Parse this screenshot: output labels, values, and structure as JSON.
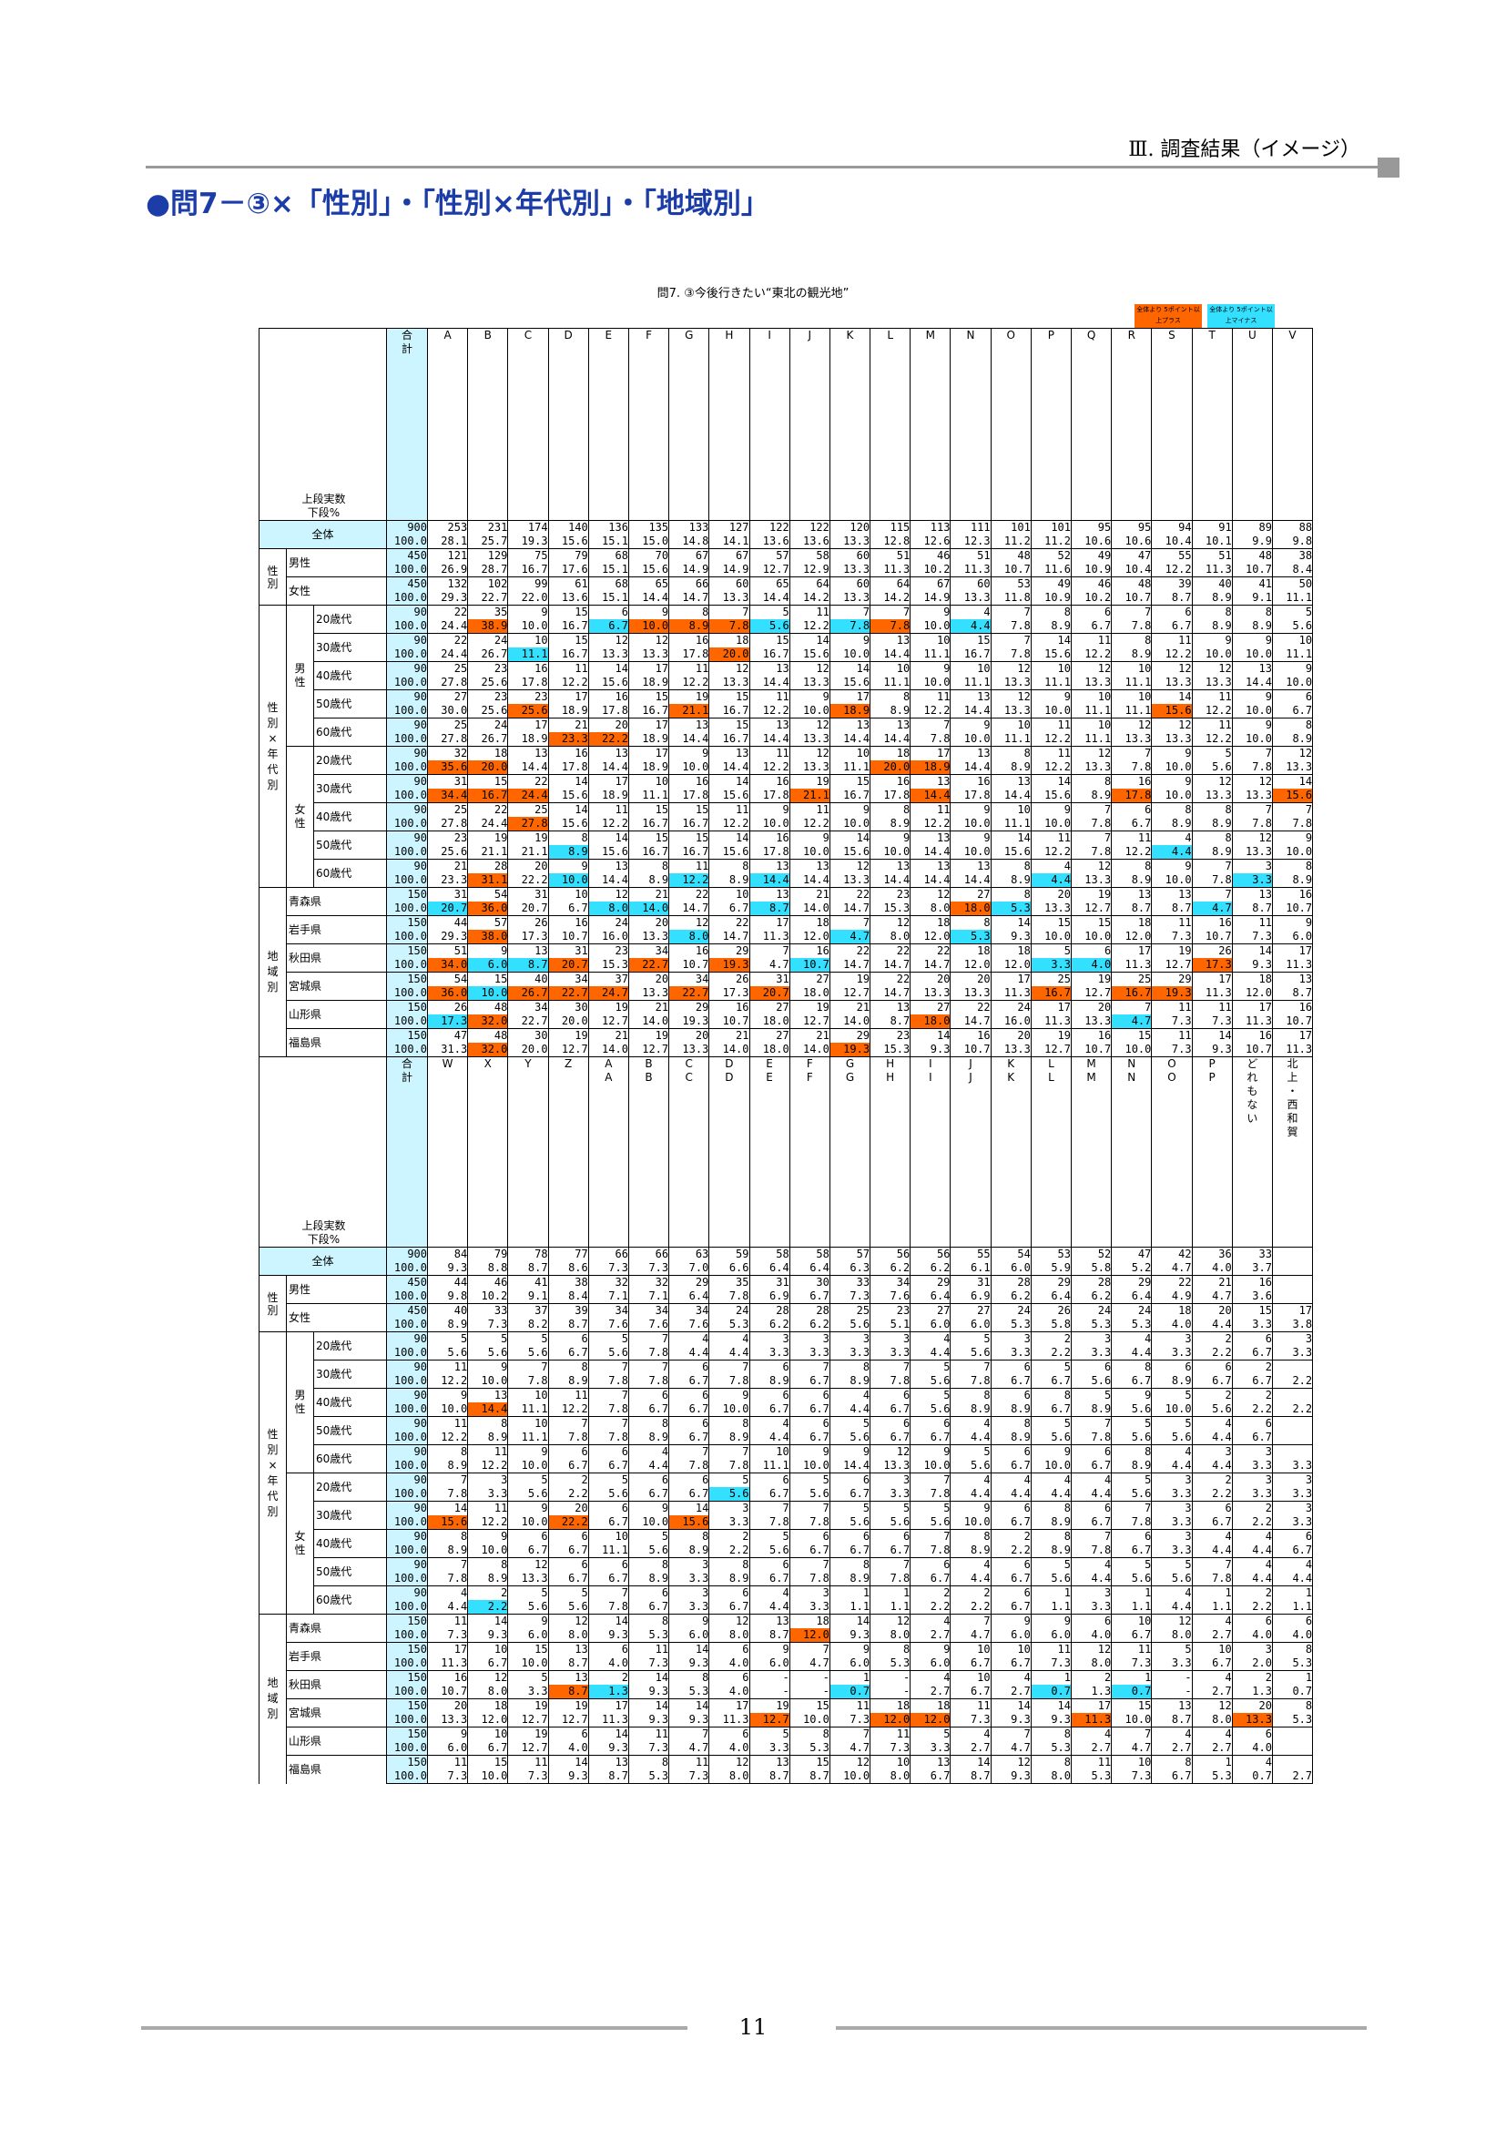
{
  "header": "Ⅲ. 調査結果（イメージ）",
  "title": "●問7－③×「性別」・「性別×年代別」・「地域別」",
  "table_title": "問7. ③今後行きたい“東北の観光地”",
  "legend": [
    "全体より\n5ポイント以上プラス",
    "全体より\n5ポイント以上マイナス"
  ],
  "stub_label": "上段実数\n下段%",
  "total_label": "全体",
  "total_head": "合\n計",
  "seibetsu": "性\n別",
  "seinen": "性\n別\n×\n年\n代\n別",
  "chiiki": "地\n域\n別",
  "male_group": "男\n性",
  "female_group": "女\n性",
  "page_number": "11",
  "rows": [
    {
      "g": "全体",
      "s": "全体"
    },
    {
      "g": "性別",
      "s": "男性"
    },
    {
      "g": "性別",
      "s": "女性"
    },
    {
      "g": "男性",
      "s": "20歳代"
    },
    {
      "g": "男性",
      "s": "30歳代"
    },
    {
      "g": "男性",
      "s": "40歳代"
    },
    {
      "g": "男性",
      "s": "50歳代"
    },
    {
      "g": "男性",
      "s": "60歳代"
    },
    {
      "g": "女性",
      "s": "20歳代"
    },
    {
      "g": "女性",
      "s": "30歳代"
    },
    {
      "g": "女性",
      "s": "40歳代"
    },
    {
      "g": "女性",
      "s": "50歳代"
    },
    {
      "g": "女性",
      "s": "60歳代"
    },
    {
      "g": "地域別",
      "s": "青森県"
    },
    {
      "g": "地域別",
      "s": "岩手県"
    },
    {
      "g": "地域別",
      "s": "秋田県"
    },
    {
      "g": "地域別",
      "s": "宮城県"
    },
    {
      "g": "地域別",
      "s": "山形県"
    },
    {
      "g": "地域別",
      "s": "福島県"
    }
  ],
  "blocks": [
    {
      "cols": [
        "A",
        "B",
        "C",
        "D",
        "E",
        "F",
        "G",
        "H",
        "I",
        "J",
        "K",
        "L",
        "M",
        "N",
        "O",
        "P",
        "Q",
        "R",
        "S",
        "T",
        "U",
        "V"
      ],
      "data": [
        [
          "900 253 231 174 140 136 135 133 127 122 122 120 115 113 111 101 101 95 95 94 91 89 88",
          "100.0 28.1 25.7 19.3 15.6 15.1 15.0 14.8 14.1 13.6 13.6 13.3 12.8 12.6 12.3 11.2 11.2 10.6 10.6 10.4 10.1 9.9 9.8"
        ],
        [
          "450 121 129 75 79 68 70 67 67 57 58 60 51 46 51 48 52 49 47 55 51 48 38",
          "100.0 26.9 28.7 16.7 17.6 15.1 15.6 14.9 14.9 12.7 12.9 13.3 11.3 10.2 11.3 10.7 11.6 10.9 10.4 12.2 11.3 10.7 8.4"
        ],
        [
          "450 132 102 99 61 68 65 66 60 65 64 60 64 67 60 53 49 46 48 39 40 41 50",
          "100.0 29.3 22.7 22.0 13.6 15.1 14.4 14.7 13.3 14.4 14.2 13.3 14.2 14.9 13.3 11.8 10.9 10.2 10.7 8.7 8.9 9.1 11.1"
        ],
        [
          "90 22 35 9 15 6 9 8 7 5 11 7 7 9 4 7 8 6 7 6 8 8 5",
          "100.0 24.4 38.9 10.0 16.7 6.7 10.0 8.9 7.8 5.6 12.2 7.8 7.8 10.0 4.4 7.8 8.9 6.7 7.8 6.7 8.9 8.9 5.6"
        ],
        [
          "90 22 24 10 15 12 12 16 18 15 14 9 13 10 15 7 14 11 8 11 9 9 10",
          "100.0 24.4 26.7 11.1 16.7 13.3 13.3 17.8 20.0 16.7 15.6 10.0 14.4 11.1 16.7 7.8 15.6 12.2 8.9 12.2 10.0 10.0 11.1"
        ],
        [
          "90 25 23 16 11 14 17 11 12 13 12 14 10 9 10 12 10 12 10 12 12 13 9",
          "100.0 27.8 25.6 17.8 12.2 15.6 18.9 12.2 13.3 14.4 13.3 15.6 11.1 10.0 11.1 13.3 11.1 13.3 11.1 13.3 13.3 14.4 10.0"
        ],
        [
          "90 27 23 23 17 16 15 19 15 11 9 17 8 11 13 12 9 10 10 14 11 9 6",
          "100.0 30.0 25.6 25.6 18.9 17.8 16.7 21.1 16.7 12.2 10.0 18.9 8.9 12.2 14.4 13.3 10.0 11.1 11.1 15.6 12.2 10.0 6.7"
        ],
        [
          "90 25 24 17 21 20 17 13 15 13 12 13 13 7 9 10 11 10 12 12 11 9 8",
          "100.0 27.8 26.7 18.9 23.3 22.2 18.9 14.4 16.7 14.4 13.3 14.4 14.4 7.8 10.0 11.1 12.2 11.1 13.3 13.3 12.2 10.0 8.9"
        ],
        [
          "90 32 18 13 16 13 17 9 13 11 12 10 18 17 13 8 11 12 7 9 5 7 12",
          "100.0 35.6 20.0 14.4 17.8 14.4 18.9 10.0 14.4 12.2 13.3 11.1 20.0 18.9 14.4 8.9 12.2 13.3 7.8 10.0 5.6 7.8 13.3"
        ],
        [
          "90 31 15 22 14 17 10 16 14 16 19 15 16 13 16 13 14 8 16 9 12 12 14",
          "100.0 34.4 16.7 24.4 15.6 18.9 11.1 17.8 15.6 17.8 21.1 16.7 17.8 14.4 17.8 14.4 15.6 8.9 17.8 10.0 13.3 13.3 15.6"
        ],
        [
          "90 25 22 25 14 11 15 15 11 9 11 9 8 11 9 10 9 7 6 8 8 7 7",
          "100.0 27.8 24.4 27.8 15.6 12.2 16.7 16.7 12.2 10.0 12.2 10.0 8.9 12.2 10.0 11.1 10.0 7.8 6.7 8.9 8.9 7.8 7.8"
        ],
        [
          "90 23 19 19 8 14 15 15 14 16 9 14 9 13 9 14 11 7 11 4 8 12 9",
          "100.0 25.6 21.1 21.1 8.9 15.6 16.7 16.7 15.6 17.8 10.0 15.6 10.0 14.4 10.0 15.6 12.2 7.8 12.2 4.4 8.9 13.3 10.0"
        ],
        [
          "90 21 28 20 9 13 8 11 8 13 13 12 13 13 13 8 4 12 8 9 7 3 8",
          "100.0 23.3 31.1 22.2 10.0 14.4 8.9 12.2 8.9 14.4 14.4 13.3 14.4 14.4 14.4 8.9 4.4 13.3 8.9 10.0 7.8 3.3 8.9"
        ],
        [
          "150 31 54 31 10 12 21 22 10 13 21 22 23 12 27 8 20 19 13 13 7 13 16",
          "100.0 20.7 36.0 20.7 6.7 8.0 14.0 14.7 6.7 8.7 14.0 14.7 15.3 8.0 18.0 5.3 13.3 12.7 8.7 8.7 4.7 8.7 10.7"
        ],
        [
          "150 44 57 26 16 24 20 12 22 17 18 7 12 18 8 14 15 15 18 11 16 11 9",
          "100.0 29.3 38.0 17.3 10.7 16.0 13.3 8.0 14.7 11.3 12.0 4.7 8.0 12.0 5.3 9.3 10.0 10.0 12.0 7.3 10.7 7.3 6.0"
        ],
        [
          "150 51 9 13 31 23 34 16 29 7 16 22 22 22 18 18 5 6 17 19 26 14 17",
          "100.0 34.0 6.0 8.7 20.7 15.3 22.7 10.7 19.3 4.7 10.7 14.7 14.7 14.7 12.0 12.0 3.3 4.0 11.3 12.7 17.3 9.3 11.3"
        ],
        [
          "150 54 15 40 34 37 20 34 26 31 27 19 22 20 20 17 25 19 25 29 17 18 13",
          "100.0 36.0 10.0 26.7 22.7 24.7 13.3 22.7 17.3 20.7 18.0 12.7 14.7 13.3 13.3 11.3 16.7 12.7 16.7 19.3 11.3 12.0 8.7"
        ],
        [
          "150 26 48 34 30 19 21 29 16 27 19 21 13 27 22 24 17 20 7 11 11 17 16",
          "100.0 17.3 32.0 22.7 20.0 12.7 14.0 19.3 10.7 18.0 12.7 14.0 8.7 18.0 14.7 16.0 11.3 13.3 4.7 7.3 7.3 11.3 10.7"
        ],
        [
          "150 47 48 30 19 21 19 20 21 27 21 29 23 14 16 20 19 16 15 11 14 16 17",
          "100.0 31.3 32.0 20.0 12.7 14.0 12.7 13.3 14.0 18.0 14.0 19.3 15.3 9.3 10.7 13.3 12.7 10.7 10.0 7.3 9.3 10.7 11.3"
        ]
      ],
      "hl": [
        "",
        "",
        "",
        "B:o E:y F:o G:o H:o I:y K:y L:o N:y",
        "H:o C:y",
        "",
        "C:o G:o K:o S:o",
        "D:o E:o",
        "A:o B:o L:o M:o",
        "A:o B:o C:o J:o M:o R:o V:o",
        "C:o",
        "D:y S:y",
        "B:o D:y G:y I:y P:y U:y",
        "A:y B:o E:y F:y I:y N:o O:y T:y",
        "B:o G:y K:y N:y",
        "A:o B:y C:y D:o F:o H:o J:y P:y Q:y T:o",
        "A:o B:y C:o D:o E:o G:o I:o P:o R:o S:o",
        "A:y B:o M:o R:y",
        "B:o K:o"
      ]
    },
    {
      "cols": [
        "W",
        "X",
        "Y",
        "Z",
        "AA",
        "BB",
        "CC",
        "DD",
        "EE",
        "FF",
        "GG",
        "HH",
        "II",
        "JJ",
        "KK",
        "LL",
        "MM",
        "NN",
        "OO",
        "PP",
        "どれもない",
        "北上・西和賀"
      ],
      "data": [
        [
          "900 84 79 78 77 66 66 63 59 58 58 57 56 56 55 54 53 52 47 42 36 33",
          "100.0 9.3 8.8 8.7 8.6 7.3 7.3 7.0 6.6 6.4 6.4 6.3 6.2 6.2 6.1 6.0 5.9 5.8 5.2 4.7 4.0 3.7"
        ],
        [
          "450 44 46 41 38 32 32 29 35 31 30 33 34 29 31 28 29 28 29 22 21 16",
          "100.0 9.8 10.2 9.1 8.4 7.1 7.1 6.4 7.8 6.9 6.7 7.3 7.6 6.4 6.9 6.2 6.4 6.2 6.4 4.9 4.7 3.6"
        ],
        [
          "450 40 33 37 39 34 34 34 24 28 28 25 23 27 27 24 26 24 24 18 20 15 17",
          "100.0 8.9 7.3 8.2 8.7 7.6 7.6 7.6 5.3 6.2 6.2 5.6 5.1 6.0 6.0 5.3 5.8 5.3 5.3 4.0 4.4 3.3 3.8"
        ],
        [
          "90 5 5 5 6 5 7 4 4 3 3 3 3 4 5 3 2 3 4 3 2 6 3",
          "100.0 5.6 5.6 5.6 6.7 5.6 7.8 4.4 4.4 3.3 3.3 3.3 3.3 4.4 5.6 3.3 2.2 3.3 4.4 3.3 2.2 6.7 3.3"
        ],
        [
          "90 11 9 7 8 7 7 6 7 6 7 8 7 5 7 6 5 6 8 6 6 2",
          "100.0 12.2 10.0 7.8 8.9 7.8 7.8 6.7 7.8 8.9 6.7 8.9 7.8 5.6 7.8 6.7 6.7 5.6 6.7 8.9 6.7 6.7 2.2"
        ],
        [
          "90 9 13 10 11 7 6 6 9 6 6 4 6 5 8 6 8 5 9 5 2 2",
          "100.0 10.0 14.4 11.1 12.2 7.8 6.7 6.7 10.0 6.7 6.7 4.4 6.7 5.6 8.9 8.9 6.7 8.9 5.6 10.0 5.6 2.2 2.2"
        ],
        [
          "90 11 8 10 7 7 8 6 8 4 6 5 6 6 4 8 5 7 5 5 4 6",
          "100.0 12.2 8.9 11.1 7.8 7.8 8.9 6.7 8.9 4.4 6.7 5.6 6.7 6.7 4.4 8.9 5.6 7.8 5.6 5.6 4.4 6.7"
        ],
        [
          "90 8 11 9 6 6 4 7 7 10 9 9 12 9 5 6 9 6 8 4 3 3",
          "100.0 8.9 12.2 10.0 6.7 6.7 4.4 7.8 7.8 11.1 10.0 14.4 13.3 10.0 5.6 6.7 10.0 6.7 8.9 4.4 4.4 3.3 3.3"
        ],
        [
          "90 7 3 5 2 5 6 6 5 6 5 6 3 7 4 4 4 4 5 3 2 3 3",
          "100.0 7.8 3.3 5.6 2.2 5.6 6.7 6.7 5.6 6.7 5.6 6.7 3.3 7.8 4.4 4.4 4.4 4.4 5.6 3.3 2.2 3.3 3.3"
        ],
        [
          "90 14 11 9 20 6 9 14 3 7 7 5 5 5 9 6 8 6 7 3 6 2 3",
          "100.0 15.6 12.2 10.0 22.2 6.7 10.0 15.6 3.3 7.8 7.8 5.6 5.6 5.6 10.0 6.7 8.9 6.7 7.8 3.3 6.7 2.2 3.3"
        ],
        [
          "90 8 9 6 6 10 5 8 2 5 6 6 6 7 8 2 8 7 6 3 4 4 6",
          "100.0 8.9 10.0 6.7 6.7 11.1 5.6 8.9 2.2 5.6 6.7 6.7 6.7 7.8 8.9 2.2 8.9 7.8 6.7 3.3 4.4 4.4 6.7"
        ],
        [
          "90 7 8 12 6 6 8 3 8 6 7 8 7 6 4 6 5 4 5 5 7 4 4",
          "100.0 7.8 8.9 13.3 6.7 6.7 8.9 3.3 8.9 6.7 7.8 8.9 7.8 6.7 4.4 6.7 5.6 4.4 5.6 5.6 7.8 4.4 4.4"
        ],
        [
          "90 4 2 5 5 7 6 3 6 4 3 1 1 2 2 6 1 3 1 4 1 2 1",
          "100.0 4.4 2.2 5.6 5.6 7.8 6.7 3.3 6.7 4.4 3.3 1.1 1.1 2.2 2.2 6.7 1.1 3.3 1.1 4.4 1.1 2.2 1.1"
        ],
        [
          "150 11 14 9 12 14 8 9 12 13 18 14 12 4 7 9 9 6 10 12 4 6 6",
          "100.0 7.3 9.3 6.0 8.0 9.3 5.3 6.0 8.0 8.7 12.0 9.3 8.0 2.7 4.7 6.0 6.0 4.0 6.7 8.0 2.7 4.0 4.0"
        ],
        [
          "150 17 10 15 13 6 11 14 6 9 7 9 8 9 10 10 11 12 11 5 10 3 8",
          "100.0 11.3 6.7 10.0 8.7 4.0 7.3 9.3 4.0 6.0 4.7 6.0 5.3 6.0 6.7 6.7 7.3 8.0 7.3 3.3 6.7 2.0 5.3"
        ],
        [
          "150 16 12 5 13 2 14 8 6 - - 1 - 4 10 4 1 2 1 - 4 2 1",
          "100.0 10.7 8.0 3.3 8.7 1.3 9.3 5.3 4.0 - - 0.7 - 2.7 6.7 2.7 0.7 1.3 0.7 - 2.7 1.3 0.7"
        ],
        [
          "150 20 18 19 19 17 14 14 17 19 15 11 18 18 11 14 14 17 15 13 12 20 8",
          "100.0 13.3 12.0 12.7 12.7 11.3 9.3 9.3 11.3 12.7 10.0 7.3 12.0 12.0 7.3 9.3 9.3 11.3 10.0 8.7 8.0 13.3 5.3"
        ],
        [
          "150 9 10 19 6 14 11 7 6 5 8 7 11 5 4 7 8 4 7 4 4 6",
          "100.0 6.0 6.7 12.7 4.0 9.3 7.3 4.7 4.0 3.3 5.3 4.7 7.3 3.3 2.7 4.7 5.3 2.7 4.7 2.7 2.7 4.0"
        ],
        [
          "150 11 15 11 14 13 8 11 12 13 15 12 10 13 14 12 8 11 10 8 1 4",
          "100.0 7.3 10.0 7.3 9.3 8.7 5.3 7.3 8.0 8.7 8.7 10.0 8.0 6.7 8.7 9.3 8.0 5.3 7.3 6.7 5.3 0.7 2.7"
        ]
      ],
      "hl": [
        "",
        "",
        "",
        "",
        "",
        "X:o",
        "",
        "",
        "DD:y",
        "W:o Z:o CC:o",
        "",
        "",
        "X:y",
        "FF:o",
        "",
        "Z:o AA:y GG:y LL:y NN:y",
        "EE:o HH:o II:o MM:o どれもない:o",
        "",
        ""
      ]
    }
  ]
}
